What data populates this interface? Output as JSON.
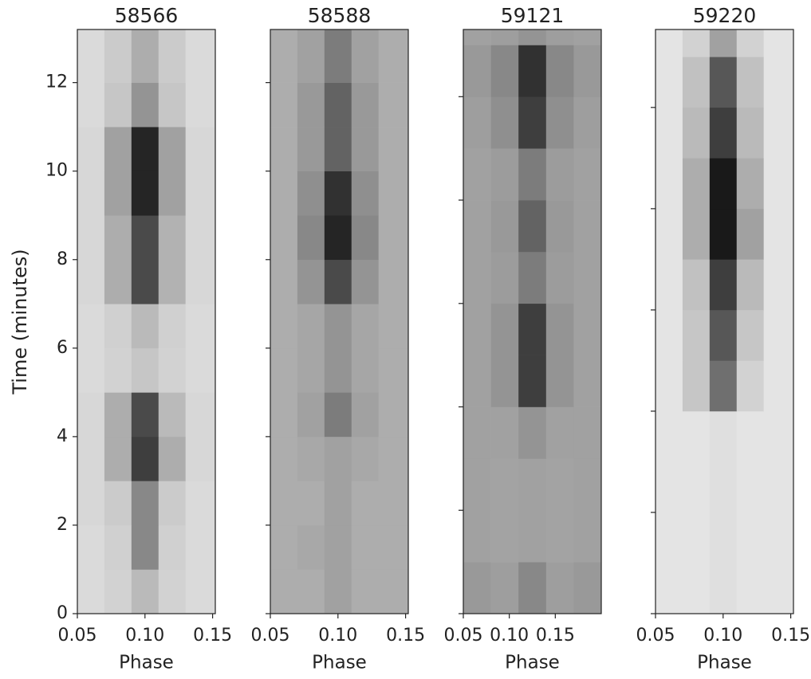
{
  "chart_data": [
    {
      "type": "heatmap",
      "title": "58566",
      "xlabel": "Phase",
      "ylabel": "Time (minutes)",
      "colormap": "Greys",
      "xlim": [
        0.05,
        0.152
      ],
      "ylim": [
        0,
        13.2
      ],
      "x_edges": [
        0.05,
        0.07,
        0.09,
        0.11,
        0.13,
        0.152
      ],
      "y_edges": [
        0,
        1,
        2,
        3,
        4,
        5,
        6,
        7,
        8,
        9,
        10,
        11,
        12,
        13.2
      ],
      "xticks": [
        {
          "value": 0.05,
          "label": "0.05"
        },
        {
          "value": 0.1,
          "label": "0.10"
        },
        {
          "value": 0.15,
          "label": "0.15"
        }
      ],
      "yticks": [
        0,
        2,
        4,
        6,
        8,
        10,
        12
      ],
      "show_ytick_labels": true,
      "z": [
        [
          0.12,
          0.15,
          0.25,
          0.15,
          0.12
        ],
        [
          0.12,
          0.16,
          0.45,
          0.16,
          0.12
        ],
        [
          0.13,
          0.18,
          0.45,
          0.18,
          0.12
        ],
        [
          0.13,
          0.3,
          0.75,
          0.3,
          0.13
        ],
        [
          0.13,
          0.3,
          0.7,
          0.25,
          0.13
        ],
        [
          0.12,
          0.15,
          0.2,
          0.15,
          0.12
        ],
        [
          0.12,
          0.16,
          0.25,
          0.16,
          0.12
        ],
        [
          0.13,
          0.3,
          0.7,
          0.28,
          0.13
        ],
        [
          0.13,
          0.3,
          0.7,
          0.28,
          0.13
        ],
        [
          0.13,
          0.35,
          0.85,
          0.35,
          0.13
        ],
        [
          0.13,
          0.35,
          0.85,
          0.35,
          0.13
        ],
        [
          0.12,
          0.2,
          0.4,
          0.2,
          0.12
        ],
        [
          0.12,
          0.18,
          0.3,
          0.18,
          0.12
        ]
      ]
    },
    {
      "type": "heatmap",
      "title": "58588",
      "xlabel": "Phase",
      "colormap": "Greys",
      "xlim": [
        0.05,
        0.152
      ],
      "ylim": [
        0,
        13.2
      ],
      "x_edges": [
        0.05,
        0.07,
        0.09,
        0.11,
        0.13,
        0.152
      ],
      "y_edges": [
        0,
        1,
        2,
        3,
        4,
        5,
        6,
        7,
        8,
        9,
        10,
        11,
        12,
        13.2
      ],
      "xticks": [
        {
          "value": 0.05,
          "label": "0.05"
        },
        {
          "value": 0.1,
          "label": "0.10"
        },
        {
          "value": 0.15,
          "label": "0.15"
        }
      ],
      "yticks": [
        0,
        2,
        4,
        6,
        8,
        10,
        12
      ],
      "show_ytick_labels": false,
      "z": [
        [
          0.3,
          0.3,
          0.35,
          0.3,
          0.3
        ],
        [
          0.3,
          0.32,
          0.35,
          0.3,
          0.3
        ],
        [
          0.3,
          0.3,
          0.35,
          0.3,
          0.3
        ],
        [
          0.3,
          0.32,
          0.35,
          0.32,
          0.3
        ],
        [
          0.3,
          0.35,
          0.5,
          0.35,
          0.3
        ],
        [
          0.3,
          0.33,
          0.4,
          0.33,
          0.3
        ],
        [
          0.3,
          0.33,
          0.4,
          0.33,
          0.3
        ],
        [
          0.3,
          0.4,
          0.7,
          0.4,
          0.3
        ],
        [
          0.3,
          0.45,
          0.85,
          0.45,
          0.3
        ],
        [
          0.3,
          0.42,
          0.8,
          0.42,
          0.3
        ],
        [
          0.3,
          0.38,
          0.6,
          0.38,
          0.3
        ],
        [
          0.3,
          0.38,
          0.6,
          0.38,
          0.3
        ],
        [
          0.3,
          0.35,
          0.5,
          0.35,
          0.3
        ]
      ]
    },
    {
      "type": "heatmap",
      "title": "59121",
      "xlabel": "Phase",
      "colormap": "Greys",
      "xlim": [
        0.05,
        0.2
      ],
      "ylim": [
        0,
        11.3
      ],
      "x_edges": [
        0.05,
        0.08,
        0.11,
        0.14,
        0.17,
        0.2
      ],
      "y_edges": [
        0,
        1,
        2,
        3,
        4,
        5,
        6,
        7,
        8,
        9,
        10,
        11,
        11.3
      ],
      "xticks": [
        {
          "value": 0.05,
          "label": "0.05"
        },
        {
          "value": 0.1,
          "label": "0.10"
        },
        {
          "value": 0.15,
          "label": "0.15"
        }
      ],
      "yticks": [
        0,
        2,
        4,
        6,
        8,
        10
      ],
      "show_ytick_labels": false,
      "z": [
        [
          0.38,
          0.36,
          0.45,
          0.36,
          0.38
        ],
        [
          0.35,
          0.34,
          0.35,
          0.34,
          0.35
        ],
        [
          0.35,
          0.34,
          0.35,
          0.34,
          0.35
        ],
        [
          0.35,
          0.35,
          0.4,
          0.35,
          0.35
        ],
        [
          0.35,
          0.4,
          0.75,
          0.4,
          0.35
        ],
        [
          0.35,
          0.4,
          0.75,
          0.4,
          0.35
        ],
        [
          0.35,
          0.37,
          0.5,
          0.37,
          0.35
        ],
        [
          0.35,
          0.38,
          0.6,
          0.38,
          0.35
        ],
        [
          0.35,
          0.37,
          0.5,
          0.37,
          0.35
        ],
        [
          0.36,
          0.42,
          0.75,
          0.42,
          0.36
        ],
        [
          0.38,
          0.45,
          0.8,
          0.45,
          0.38
        ],
        [
          0.35,
          0.36,
          0.4,
          0.36,
          0.35
        ]
      ]
    },
    {
      "type": "heatmap",
      "title": "59220",
      "xlabel": "Phase",
      "colormap": "Greys",
      "xlim": [
        0.05,
        0.152
      ],
      "ylim": [
        0,
        11.54
      ],
      "x_edges": [
        0.05,
        0.07,
        0.09,
        0.11,
        0.13,
        0.152
      ],
      "y_edges": [
        0,
        1,
        2,
        3,
        4,
        5,
        6,
        7,
        8,
        9,
        10,
        11,
        11.54
      ],
      "xticks": [
        {
          "value": 0.05,
          "label": "0.05"
        },
        {
          "value": 0.1,
          "label": "0.10"
        },
        {
          "value": 0.15,
          "label": "0.15"
        }
      ],
      "yticks": [
        0,
        2,
        4,
        6,
        8,
        10
      ],
      "show_ytick_labels": false,
      "z": [
        [
          0.08,
          0.08,
          0.1,
          0.08,
          0.08
        ],
        [
          0.08,
          0.08,
          0.1,
          0.08,
          0.08
        ],
        [
          0.08,
          0.08,
          0.1,
          0.08,
          0.08
        ],
        [
          0.08,
          0.08,
          0.1,
          0.08,
          0.08
        ],
        [
          0.08,
          0.2,
          0.55,
          0.15,
          0.08
        ],
        [
          0.08,
          0.2,
          0.65,
          0.2,
          0.08
        ],
        [
          0.08,
          0.22,
          0.75,
          0.25,
          0.08
        ],
        [
          0.08,
          0.3,
          0.9,
          0.35,
          0.08
        ],
        [
          0.08,
          0.3,
          0.9,
          0.3,
          0.08
        ],
        [
          0.08,
          0.25,
          0.75,
          0.25,
          0.08
        ],
        [
          0.08,
          0.22,
          0.65,
          0.22,
          0.08
        ],
        [
          0.08,
          0.15,
          0.35,
          0.15,
          0.08
        ]
      ]
    }
  ]
}
